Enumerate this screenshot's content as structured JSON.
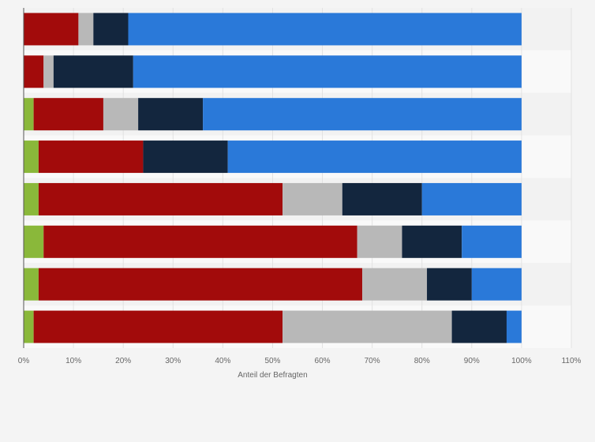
{
  "chart_data": {
    "type": "bar",
    "orientation": "horizontal",
    "stacked": true,
    "xlabel": "Anteil der Befragten",
    "ylabel": "",
    "xlim": [
      0,
      110
    ],
    "x_ticks": [
      "0%",
      "10%",
      "20%",
      "30%",
      "40%",
      "50%",
      "60%",
      "70%",
      "80%",
      "90%",
      "100%",
      "110%"
    ],
    "grid": true,
    "legend": "none",
    "colors": {
      "green": "#8ab83a",
      "red": "#a20b0b",
      "gray": "#b8b8b8",
      "navy": "#13263e",
      "blue": "#2a79d9"
    },
    "rows": 8,
    "series": [
      {
        "color": "green",
        "values": [
          0,
          0,
          2,
          3,
          3,
          4,
          3,
          2
        ]
      },
      {
        "color": "red",
        "values": [
          11,
          4,
          14,
          21,
          49,
          63,
          65,
          50
        ]
      },
      {
        "color": "gray",
        "values": [
          3,
          2,
          7,
          0,
          12,
          9,
          13,
          34
        ]
      },
      {
        "color": "navy",
        "values": [
          7,
          16,
          13,
          17,
          16,
          12,
          9,
          11
        ]
      },
      {
        "color": "blue",
        "values": [
          79,
          78,
          64,
          59,
          20,
          12,
          10,
          3
        ]
      }
    ]
  }
}
